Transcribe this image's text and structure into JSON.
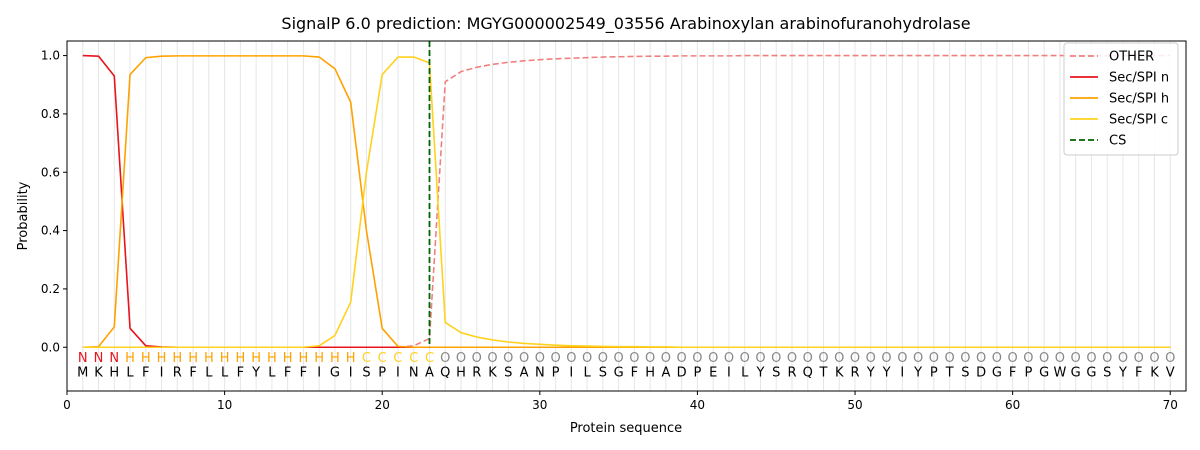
{
  "chart_data": {
    "type": "line",
    "title": "SignalP 6.0 prediction: MGYG000002549_03556 Arabinoxylan arabinofuranohydrolase",
    "xlabel": "Protein sequence",
    "ylabel": "Probability",
    "xlim": [
      0,
      71
    ],
    "ylim": [
      -0.15,
      1.05
    ],
    "xticks": [
      0,
      10,
      20,
      30,
      40,
      50,
      60,
      70
    ],
    "yticks": [
      0.0,
      0.2,
      0.4,
      0.6,
      0.8,
      1.0
    ],
    "xtick_labels": [
      "0",
      "10",
      "20",
      "30",
      "40",
      "50",
      "60",
      "70"
    ],
    "ytick_labels": [
      "0.0",
      "0.2",
      "0.4",
      "0.6",
      "0.8",
      "1.0"
    ],
    "legend_position": "top-right",
    "x": [
      1,
      2,
      3,
      4,
      5,
      6,
      7,
      8,
      9,
      10,
      11,
      12,
      13,
      14,
      15,
      16,
      17,
      18,
      19,
      20,
      21,
      22,
      23,
      24,
      25,
      26,
      27,
      28,
      29,
      30,
      31,
      32,
      33,
      34,
      35,
      36,
      37,
      38,
      39,
      40,
      41,
      42,
      43,
      44,
      45,
      46,
      47,
      48,
      49,
      50,
      51,
      52,
      53,
      54,
      55,
      56,
      57,
      58,
      59,
      60,
      61,
      62,
      63,
      64,
      65,
      66,
      67,
      68,
      69,
      70
    ],
    "sequence": [
      "M",
      "K",
      "H",
      "L",
      "F",
      "I",
      "R",
      "F",
      "L",
      "L",
      "F",
      "Y",
      "L",
      "F",
      "F",
      "I",
      "G",
      "I",
      "S",
      "P",
      "I",
      "N",
      "A",
      "Q",
      "H",
      "R",
      "K",
      "S",
      "A",
      "N",
      "P",
      "I",
      "L",
      "S",
      "G",
      "F",
      "H",
      "A",
      "D",
      "P",
      "E",
      "I",
      "L",
      "Y",
      "S",
      "R",
      "Q",
      "T",
      "K",
      "R",
      "Y",
      "Y",
      "I",
      "Y",
      "P",
      "T",
      "S",
      "D",
      "G",
      "F",
      "P",
      "G",
      "W",
      "G",
      "G",
      "S",
      "Y",
      "F",
      "K",
      "V"
    ],
    "region_labels": [
      "N",
      "N",
      "N",
      "H",
      "H",
      "H",
      "H",
      "H",
      "H",
      "H",
      "H",
      "H",
      "H",
      "H",
      "H",
      "H",
      "H",
      "H",
      "C",
      "C",
      "C",
      "C",
      "C",
      "O",
      "O",
      "O",
      "O",
      "O",
      "O",
      "O",
      "O",
      "O",
      "O",
      "O",
      "O",
      "O",
      "O",
      "O",
      "O",
      "O",
      "O",
      "O",
      "O",
      "O",
      "O",
      "O",
      "O",
      "O",
      "O",
      "O",
      "O",
      "O",
      "O",
      "O",
      "O",
      "O",
      "O",
      "O",
      "O",
      "O",
      "O",
      "O",
      "O",
      "O",
      "O",
      "O",
      "O",
      "O",
      "O",
      "O"
    ],
    "region_colors": {
      "N": "#e8141c",
      "H": "#ffa200",
      "C": "#ffd21f",
      "O": "#888888"
    },
    "cs_position": 23,
    "series": [
      {
        "name": "OTHER",
        "color": "#f08080",
        "dash": true,
        "values": [
          0,
          0,
          0,
          0,
          0,
          0,
          0,
          0,
          0,
          0,
          0,
          0,
          0,
          0,
          0,
          0,
          0,
          0,
          0,
          0,
          0,
          0.005,
          0.03,
          0.91,
          0.945,
          0.96,
          0.97,
          0.977,
          0.982,
          0.986,
          0.989,
          0.991,
          0.993,
          0.995,
          0.996,
          0.997,
          0.998,
          0.998,
          0.999,
          0.999,
          0.999,
          0.999,
          1,
          1,
          1,
          1,
          1,
          1,
          1,
          1,
          1,
          1,
          1,
          1,
          1,
          1,
          1,
          1,
          1,
          1,
          1,
          1,
          1,
          1,
          1,
          1,
          1,
          1,
          1,
          1
        ]
      },
      {
        "name": "Sec/SPI n",
        "color": "#e8141c",
        "dash": false,
        "values": [
          1.0,
          0.998,
          0.93,
          0.065,
          0.005,
          0.001,
          0,
          0,
          0,
          0,
          0,
          0,
          0,
          0,
          0,
          0,
          0,
          0,
          0,
          0,
          0,
          0,
          0,
          0,
          0,
          0,
          0,
          0,
          0,
          0,
          0,
          0,
          0,
          0,
          0,
          0,
          0,
          0,
          0,
          0,
          0,
          0,
          0,
          0,
          0,
          0,
          0,
          0,
          0,
          0,
          0,
          0,
          0,
          0,
          0,
          0,
          0,
          0,
          0,
          0,
          0,
          0,
          0,
          0,
          0,
          0,
          0,
          0,
          0,
          0
        ]
      },
      {
        "name": "Sec/SPI h",
        "color": "#ffa200",
        "dash": false,
        "values": [
          0,
          0.002,
          0.07,
          0.935,
          0.993,
          0.998,
          0.999,
          0.999,
          0.999,
          0.999,
          0.999,
          0.999,
          0.999,
          0.999,
          0.999,
          0.995,
          0.955,
          0.84,
          0.4,
          0.065,
          0.003,
          0,
          0,
          0,
          0,
          0,
          0,
          0,
          0,
          0,
          0,
          0,
          0,
          0,
          0,
          0,
          0,
          0,
          0,
          0,
          0,
          0,
          0,
          0,
          0,
          0,
          0,
          0,
          0,
          0,
          0,
          0,
          0,
          0,
          0,
          0,
          0,
          0,
          0,
          0,
          0,
          0,
          0,
          0,
          0,
          0,
          0,
          0,
          0,
          0
        ]
      },
      {
        "name": "Sec/SPI c",
        "color": "#ffd21f",
        "dash": false,
        "values": [
          0,
          0,
          0,
          0,
          0,
          0,
          0,
          0,
          0,
          0,
          0,
          0,
          0,
          0,
          0,
          0.005,
          0.04,
          0.155,
          0.6,
          0.935,
          0.995,
          0.995,
          0.975,
          0.085,
          0.05,
          0.035,
          0.025,
          0.018,
          0.013,
          0.01,
          0.007,
          0.005,
          0.004,
          0.003,
          0.002,
          0.002,
          0.001,
          0.001,
          0,
          0,
          0,
          0,
          0,
          0,
          0,
          0,
          0,
          0,
          0,
          0,
          0,
          0,
          0,
          0,
          0,
          0,
          0,
          0,
          0,
          0,
          0,
          0,
          0,
          0,
          0,
          0,
          0,
          0,
          0,
          0
        ]
      },
      {
        "name": "CS",
        "color": "#006400",
        "dash": true,
        "vertical_at": 23
      }
    ]
  }
}
